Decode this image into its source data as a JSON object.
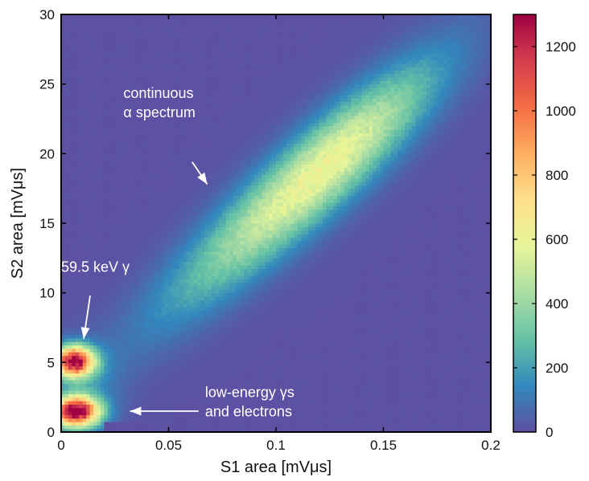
{
  "chart_data": {
    "type": "heatmap",
    "title": "",
    "xlabel": "S1 area [mVμs]",
    "ylabel": "S2 area [mVμs]",
    "xlim": [
      0,
      0.2
    ],
    "ylim": [
      0,
      30
    ],
    "x_ticks": [
      "0",
      "0.05",
      "0.1",
      "0.15",
      "0.2"
    ],
    "x_tick_values": [
      0,
      0.05,
      0.1,
      0.15,
      0.2
    ],
    "y_ticks": [
      "0",
      "5",
      "10",
      "15",
      "20",
      "25",
      "30"
    ],
    "y_tick_values": [
      0,
      5,
      10,
      15,
      20,
      25,
      30
    ],
    "colorbar": {
      "colormap": "spectral",
      "range": [
        0,
        1300
      ],
      "ticks": [
        "0",
        "200",
        "400",
        "600",
        "800",
        "1000",
        "1200"
      ],
      "tick_values": [
        0,
        200,
        400,
        600,
        800,
        1000,
        1200
      ],
      "colors": [
        "#5e4fa2",
        "#3288bd",
        "#66c2a5",
        "#abdda4",
        "#e6f598",
        "#fee08b",
        "#fdae61",
        "#f46d43",
        "#d53e4f",
        "#9e0142"
      ]
    },
    "grid": false,
    "bins": {
      "x": 120,
      "y": 120
    },
    "components": [
      {
        "label": "continuous α spectrum",
        "center": [
          0.122,
          19.0
        ],
        "sigma_major_x": 0.045,
        "sigma_major_y": 6.3,
        "sigma_minor": 1.8,
        "peak": 610
      },
      {
        "label": "59.5 keV γ",
        "center": [
          0.006,
          5.1
        ],
        "sigma": [
          0.0065,
          0.75
        ],
        "peak": 1250
      },
      {
        "label": "low-energy γs and electrons",
        "center": [
          0.007,
          1.5
        ],
        "sigma": [
          0.0075,
          0.75
        ],
        "peak": 1300
      }
    ],
    "annotations": [
      {
        "lines": [
          "continuous",
          "α spectrum"
        ],
        "text_at": [
          0.029,
          24.0
        ],
        "arrow_from": [
          0.061,
          19.4
        ],
        "arrow_to": [
          0.068,
          17.8
        ]
      },
      {
        "lines": [
          "59.5 keV γ"
        ],
        "text_at": [
          0.0,
          11.5
        ],
        "arrow_from": [
          0.0135,
          9.8
        ],
        "arrow_to": [
          0.0105,
          6.7
        ]
      },
      {
        "lines": [
          "low-energy γs",
          "and electrons"
        ],
        "text_at": [
          0.067,
          2.5
        ],
        "arrow_from": [
          0.064,
          1.5
        ],
        "arrow_to": [
          0.032,
          1.5
        ]
      }
    ]
  }
}
